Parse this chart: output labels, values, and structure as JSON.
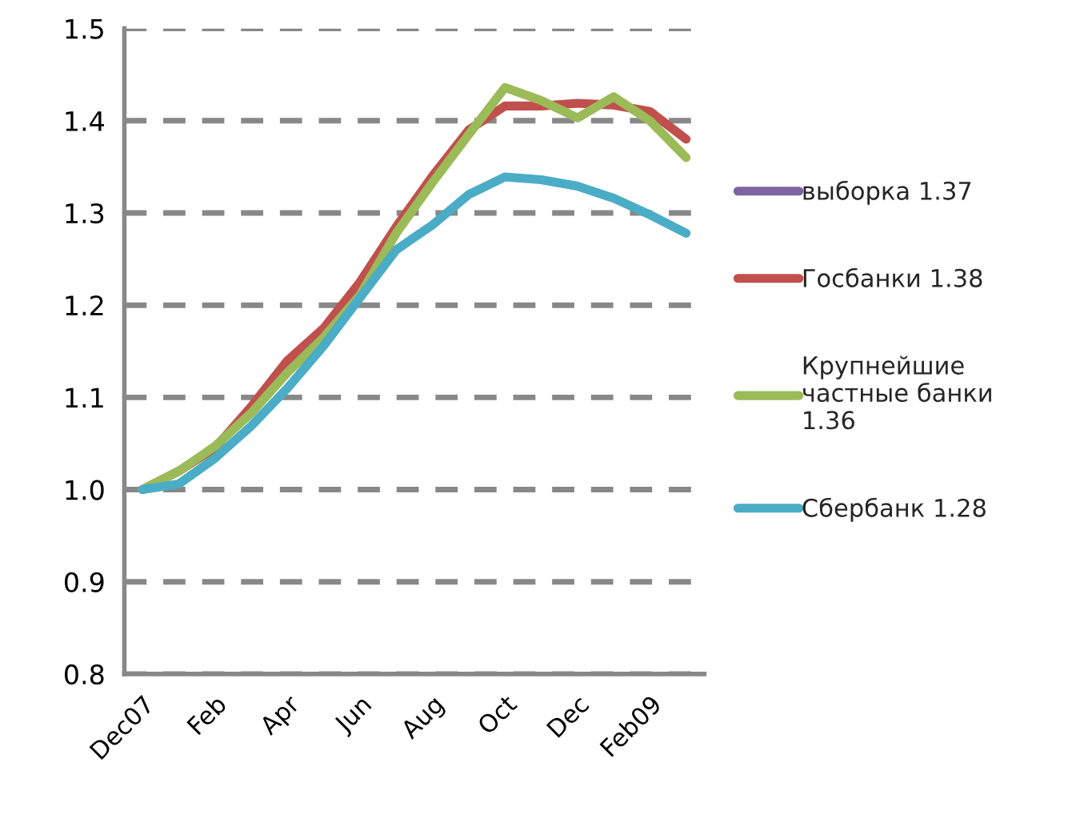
{
  "chart_data": {
    "type": "line",
    "categories": [
      "Dec07",
      null,
      "Feb",
      null,
      "Apr",
      null,
      "Jun",
      null,
      "Aug",
      null,
      "Oct",
      null,
      "Dec",
      null,
      "Feb09",
      null
    ],
    "series": [
      {
        "name": "выборка 1.37",
        "color": "#8064a2",
        "values": [
          null,
          null,
          null,
          null,
          null,
          null,
          null,
          null,
          null,
          null,
          null,
          null,
          null,
          null,
          null,
          null
        ]
      },
      {
        "name": "Госбанки 1.38",
        "color": "#c0504d",
        "values": [
          1.0,
          1.02,
          1.045,
          1.09,
          1.14,
          1.175,
          1.225,
          1.285,
          1.34,
          1.39,
          1.416,
          1.416,
          1.419,
          1.417,
          1.41,
          1.38
        ]
      },
      {
        "name": "Крупнейшие\nчастные банки\n1.36",
        "color": "#9bbb59",
        "values": [
          1.0,
          1.02,
          1.047,
          1.083,
          1.127,
          1.165,
          1.211,
          1.278,
          1.333,
          1.385,
          1.436,
          1.422,
          1.403,
          1.426,
          1.4,
          1.36
        ]
      },
      {
        "name": "Сбербанк 1.28",
        "color": "#4bacc6",
        "values": [
          1.0,
          1.006,
          1.034,
          1.069,
          1.11,
          1.156,
          1.208,
          1.26,
          1.287,
          1.32,
          1.339,
          1.336,
          1.329,
          1.316,
          1.298,
          1.278
        ]
      }
    ],
    "ylim": [
      0.8,
      1.5
    ],
    "yticks": [
      0.8,
      0.9,
      {
        "value": 1.0,
        "label": "1.0"
      },
      1.1,
      1.2,
      1.3,
      1.4,
      1.5
    ],
    "grid": "y",
    "legend": "right",
    "marker": "none",
    "line_style": "solid"
  }
}
